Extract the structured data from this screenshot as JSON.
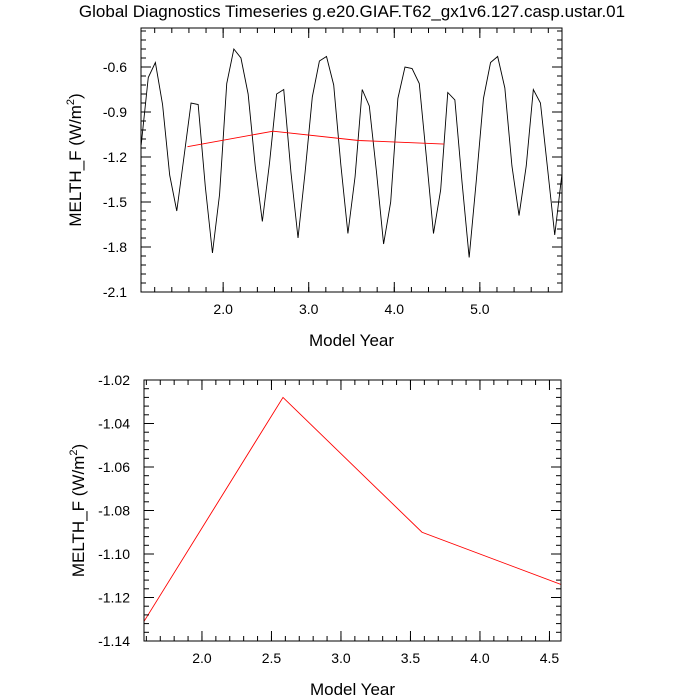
{
  "title": "Global Diagnostics Timeseries g.e20.GIAF.T62_gx1v6.127.casp.ustar.01",
  "chart_data": [
    {
      "type": "line",
      "title": "Global Diagnostics Timeseries g.e20.GIAF.T62_gx1v6.127.casp.ustar.01",
      "xlabel": "Model Year",
      "ylabel": "MELTH_F (W/m²)",
      "ylabel_parts": [
        "MELTH_F (W/m",
        "2",
        ")"
      ],
      "xlim": [
        1.04,
        5.96
      ],
      "ylim": [
        -2.1,
        -0.34
      ],
      "xticks": [
        2.0,
        3.0,
        4.0,
        5.0
      ],
      "xtick_labels": [
        "2.0",
        "3.0",
        "4.0",
        "5.0"
      ],
      "yticks": [
        -0.6,
        -0.9,
        -1.2,
        -1.5,
        -1.8,
        -2.1
      ],
      "ytick_labels": [
        "-0.6",
        "-0.9",
        "-1.2",
        "-1.5",
        "-1.8",
        "-2.1"
      ],
      "grid": false,
      "series": [
        {
          "color": "#000000",
          "x": [
            1.042,
            1.125,
            1.208,
            1.292,
            1.375,
            1.458,
            1.542,
            1.625,
            1.708,
            1.792,
            1.875,
            1.958,
            2.042,
            2.125,
            2.208,
            2.292,
            2.375,
            2.458,
            2.542,
            2.625,
            2.708,
            2.792,
            2.875,
            2.958,
            3.042,
            3.125,
            3.208,
            3.292,
            3.375,
            3.458,
            3.542,
            3.625,
            3.708,
            3.792,
            3.875,
            3.958,
            4.042,
            4.125,
            4.208,
            4.292,
            4.375,
            4.458,
            4.542,
            4.625,
            4.708,
            4.792,
            4.875,
            4.958,
            5.042,
            5.125,
            5.208,
            5.292,
            5.375,
            5.458,
            5.542,
            5.625,
            5.708,
            5.792,
            5.875,
            5.958
          ],
          "values": [
            -1.12,
            -0.67,
            -0.57,
            -0.85,
            -1.32,
            -1.56,
            -1.2,
            -0.84,
            -0.85,
            -1.4,
            -1.84,
            -1.45,
            -0.71,
            -0.48,
            -0.54,
            -0.78,
            -1.26,
            -1.63,
            -1.24,
            -0.78,
            -0.75,
            -1.3,
            -1.74,
            -1.3,
            -0.8,
            -0.56,
            -0.53,
            -0.72,
            -1.25,
            -1.71,
            -1.33,
            -0.75,
            -0.86,
            -1.3,
            -1.78,
            -1.5,
            -0.81,
            -0.6,
            -0.61,
            -0.71,
            -1.2,
            -1.71,
            -1.42,
            -0.77,
            -0.82,
            -1.37,
            -1.87,
            -1.36,
            -0.81,
            -0.57,
            -0.53,
            -0.74,
            -1.26,
            -1.59,
            -1.26,
            -0.75,
            -0.84,
            -1.28,
            -1.72,
            -1.32
          ]
        },
        {
          "color": "#ff0000",
          "x": [
            1.583,
            2.583,
            3.583,
            4.583
          ],
          "values": [
            -1.131,
            -1.028,
            -1.09,
            -1.114
          ]
        }
      ]
    },
    {
      "type": "line",
      "title": "",
      "xlabel": "Model Year",
      "ylabel": "MELTH_F (W/m²)",
      "ylabel_parts": [
        "MELTH_F (W/m",
        "2",
        ")"
      ],
      "xlim": [
        1.583,
        4.583
      ],
      "ylim": [
        -1.14,
        -1.02
      ],
      "xticks": [
        2.0,
        2.5,
        3.0,
        3.5,
        4.0,
        4.5
      ],
      "xtick_labels": [
        "2.0",
        "2.5",
        "3.0",
        "3.5",
        "4.0",
        "4.5"
      ],
      "yticks": [
        -1.02,
        -1.04,
        -1.06,
        -1.08,
        -1.1,
        -1.12,
        -1.14
      ],
      "ytick_labels": [
        "-1.02",
        "-1.04",
        "-1.06",
        "-1.08",
        "-1.10",
        "-1.12",
        "-1.14"
      ],
      "grid": false,
      "series": [
        {
          "color": "#ff0000",
          "x": [
            1.583,
            2.583,
            3.583,
            4.583
          ],
          "values": [
            -1.131,
            -1.028,
            -1.09,
            -1.114
          ]
        }
      ]
    }
  ]
}
